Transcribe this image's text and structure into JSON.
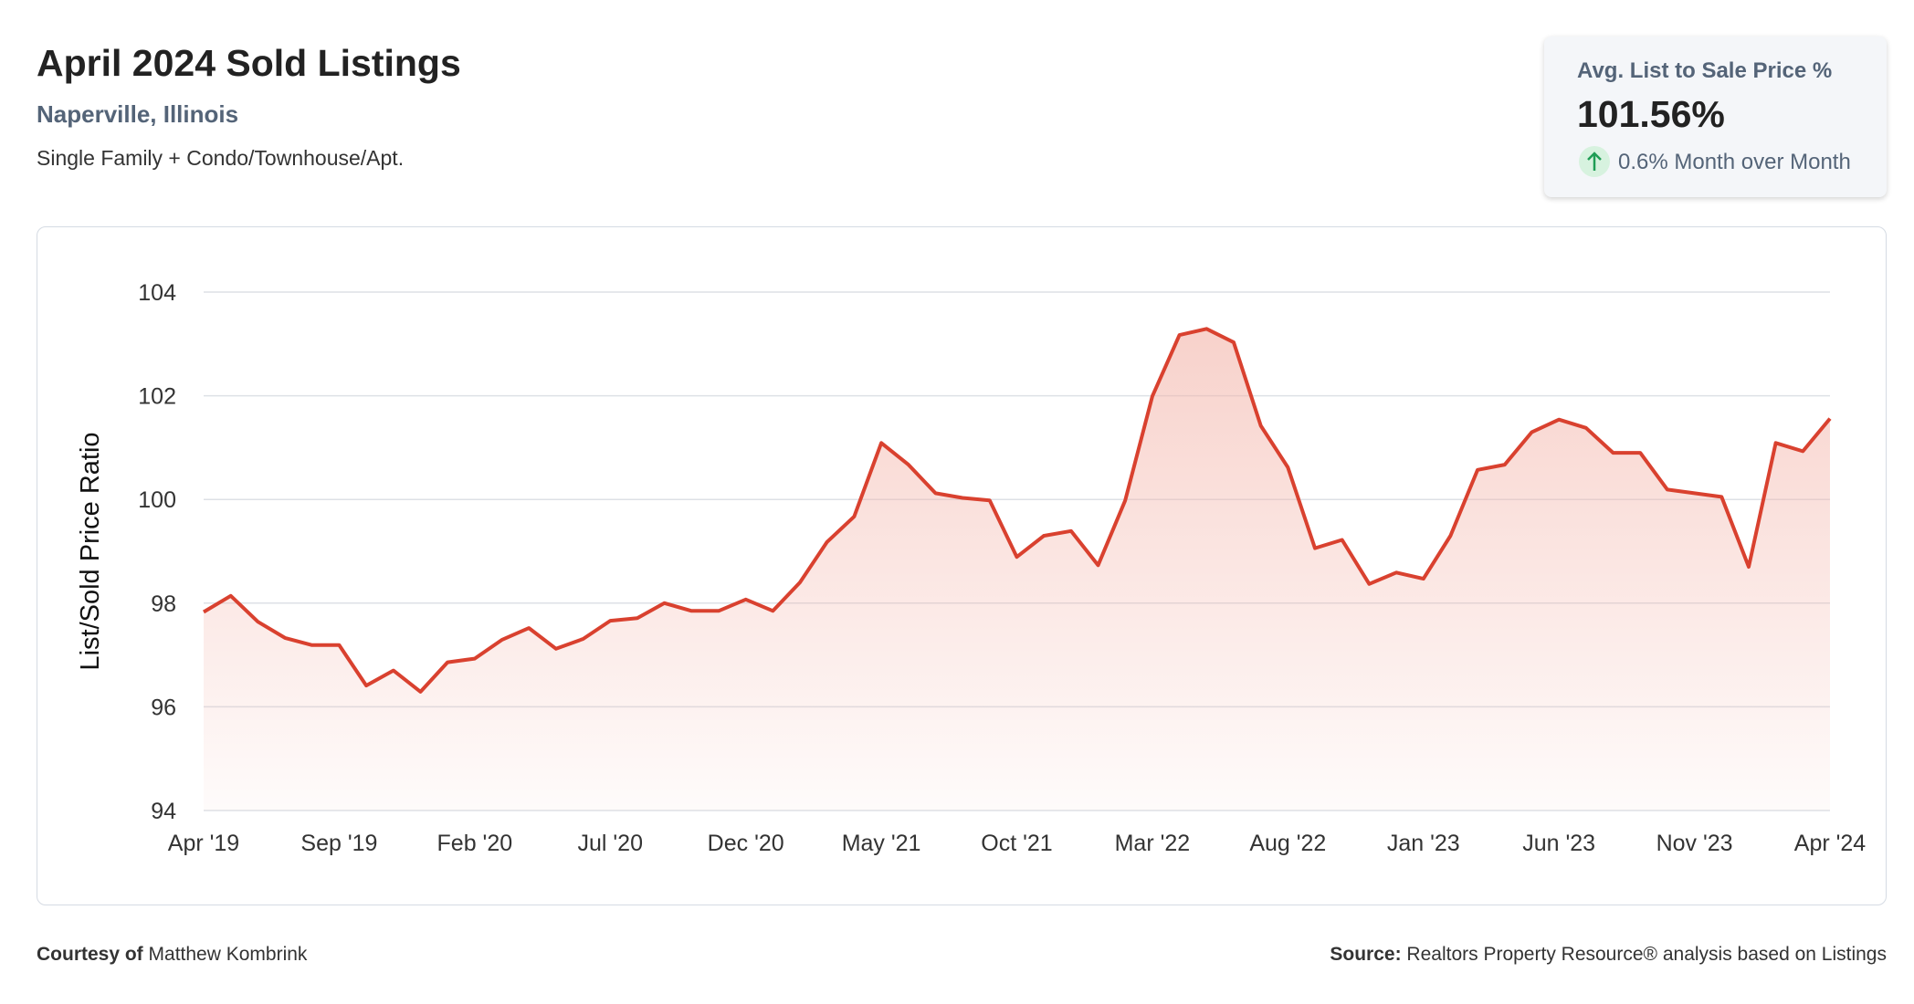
{
  "header": {
    "title": "April 2024 Sold Listings",
    "location": "Naperville, Illinois",
    "property_type": "Single Family + Condo/Townhouse/Apt."
  },
  "kpi": {
    "label": "Avg. List to Sale Price %",
    "value": "101.56%",
    "change": "0.6% Month over Month"
  },
  "chart_data": {
    "type": "area",
    "y_label": "List/Sold Price Ratio",
    "color": "#d9412f",
    "grid": true,
    "categories": [
      "Apr '19",
      null,
      null,
      null,
      null,
      "Sep '19",
      null,
      null,
      null,
      null,
      "Feb '20",
      null,
      null,
      null,
      null,
      "Jul '20",
      null,
      null,
      null,
      null,
      "Dec '20",
      null,
      null,
      null,
      null,
      "May '21",
      null,
      null,
      null,
      null,
      "Oct '21",
      null,
      null,
      null,
      null,
      "Mar '22",
      null,
      null,
      null,
      null,
      "Aug '22",
      null,
      null,
      null,
      null,
      "Jan '23",
      null,
      null,
      null,
      null,
      "Jun '23",
      null,
      null,
      null,
      null,
      "Nov '23",
      null,
      null,
      null,
      null,
      "Apr '24"
    ],
    "series": [
      {
        "values": [
          97.83,
          98.14,
          97.64,
          97.33,
          97.19,
          97.19,
          96.41,
          96.7,
          96.29,
          96.86,
          96.93,
          97.29,
          97.52,
          97.12,
          97.31,
          97.66,
          97.71,
          98.0,
          97.85,
          97.85,
          98.07,
          97.85,
          98.4,
          99.18,
          99.67,
          101.09,
          100.67,
          100.12,
          100.03,
          99.98,
          98.89,
          99.3,
          99.39,
          98.73,
          99.98,
          101.99,
          103.17,
          103.29,
          103.03,
          101.42,
          100.62,
          99.06,
          99.22,
          98.37,
          98.59,
          98.47,
          99.3,
          100.57,
          100.67,
          101.3,
          101.54,
          101.38,
          100.9,
          100.9,
          100.19,
          100.12,
          100.05,
          98.7,
          101.09,
          100.93,
          101.56
        ]
      }
    ],
    "ylim": [
      94,
      104
    ],
    "yticks": [
      94,
      96,
      98,
      100,
      102,
      104
    ]
  },
  "footer": {
    "courtesy_label": "Courtesy of",
    "courtesy_name": "Matthew Kombrink",
    "source_label": "Source:",
    "source_text": "Realtors Property Resource® analysis based on Listings"
  }
}
